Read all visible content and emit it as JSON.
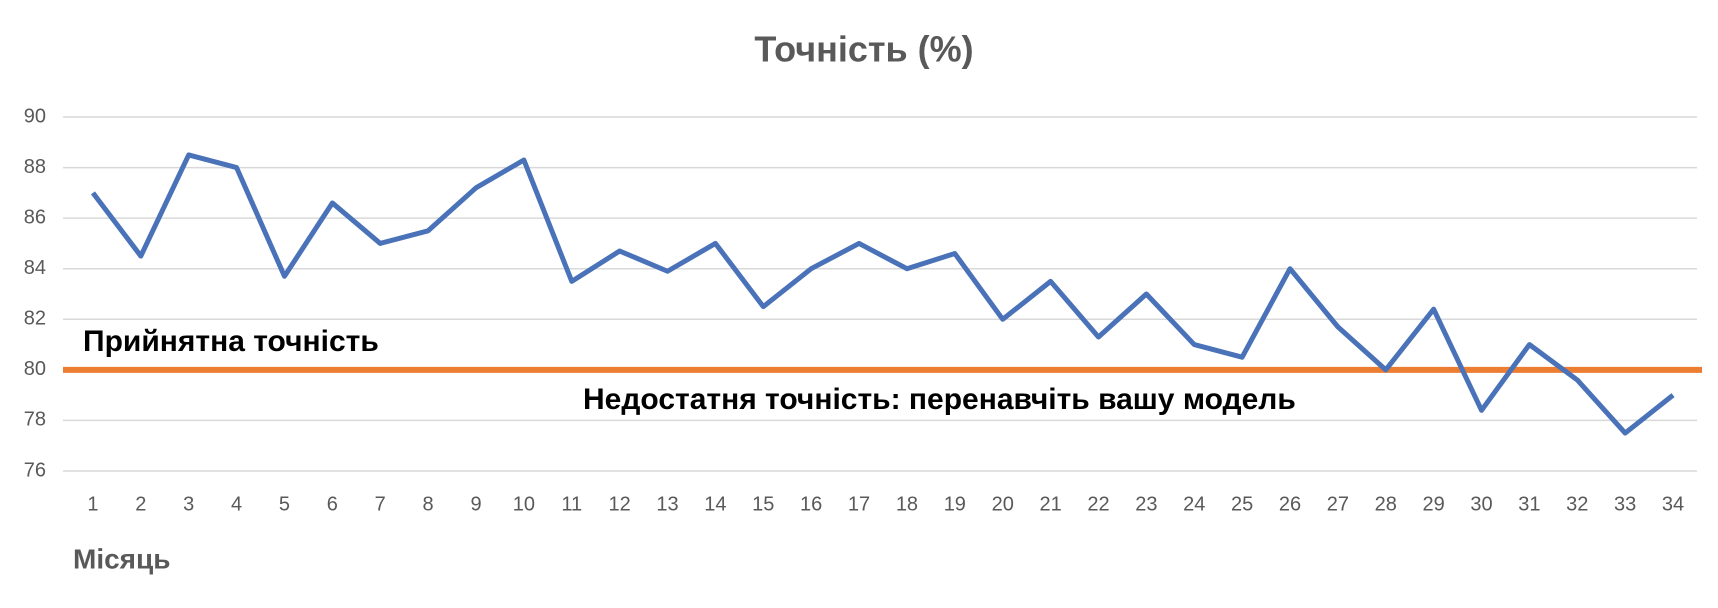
{
  "chart_data": {
    "type": "line",
    "title": "Точність (%)",
    "x_label": "Місяць",
    "categories": [
      1,
      2,
      3,
      4,
      5,
      6,
      7,
      8,
      9,
      10,
      11,
      12,
      13,
      14,
      15,
      16,
      17,
      18,
      19,
      20,
      21,
      22,
      23,
      24,
      25,
      26,
      27,
      28,
      29,
      30,
      31,
      32,
      33,
      34
    ],
    "series": [
      {
        "name": "Точність",
        "color": "#4a72b8",
        "values": [
          87,
          84.5,
          88.5,
          88,
          83.7,
          86.6,
          85,
          85.5,
          87.2,
          88.3,
          83.5,
          84.7,
          83.9,
          85,
          82.5,
          84,
          85,
          84,
          84.6,
          82,
          83.5,
          81.3,
          83,
          81,
          80.5,
          84,
          81.7,
          80,
          82.4,
          78.4,
          81,
          79.6,
          77.5,
          79
        ]
      }
    ],
    "reference_line": {
      "value": 80,
      "color": "#ed7d31"
    },
    "annotations": [
      "Прийнятна точність",
      "Недостатня точність: перенавчіть вашу модель"
    ],
    "ylim": [
      76,
      90
    ],
    "yticks": [
      76,
      78,
      80,
      82,
      84,
      86,
      88,
      90
    ],
    "grid": true
  }
}
